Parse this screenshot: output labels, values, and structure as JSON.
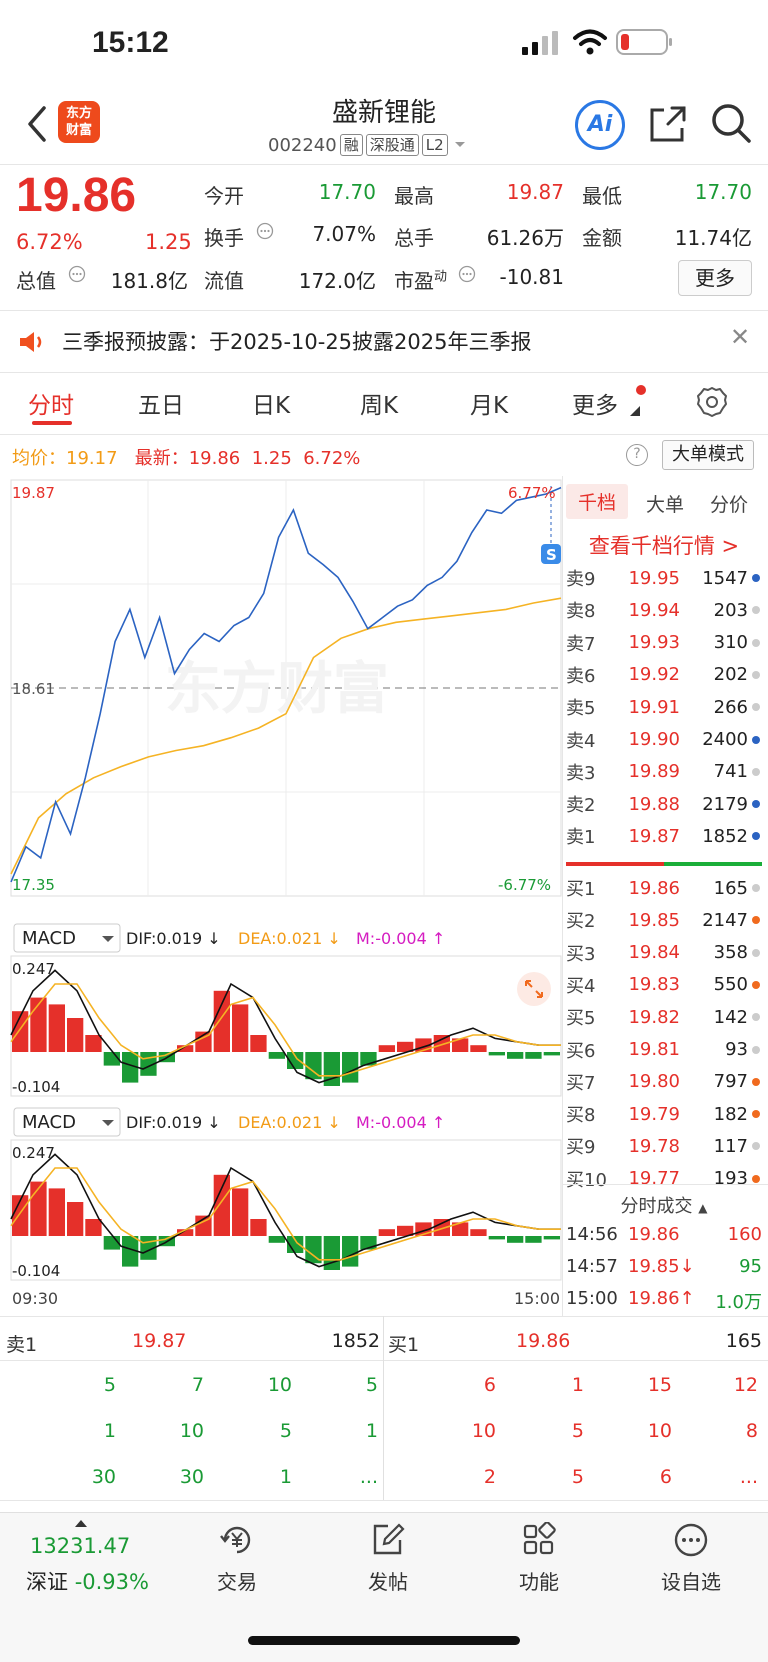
{
  "status_bar": {
    "time": "15:12"
  },
  "header": {
    "logo_line1": "东方",
    "logo_line2": "财富",
    "stock_name": "盛新锂能",
    "stock_code": "002240",
    "tags": [
      "融",
      "深股通",
      "L2"
    ]
  },
  "quote": {
    "price": "19.86",
    "change_pct": "6.72%",
    "change": "1.25",
    "open_label": "今开",
    "open": "17.70",
    "high_label": "最高",
    "high": "19.87",
    "low_label": "最低",
    "low": "17.70",
    "turnover_label": "换手",
    "turnover": "7.07%",
    "volume_label": "总手",
    "volume": "61.26万",
    "amount_label": "金额",
    "amount": "11.74亿",
    "mcap_label": "总值",
    "mcap": "181.8亿",
    "float_label": "流值",
    "float_val": "172.0亿",
    "pe_label": "市盈",
    "pe_sup": "动",
    "pe": "-10.81",
    "more_label": "更多"
  },
  "notice": {
    "text": "三季报预披露：于2025-10-25披露2025年三季报"
  },
  "tabs": [
    "分时",
    "五日",
    "日K",
    "周K",
    "月K",
    "更多"
  ],
  "info_line": {
    "avg_label": "均价：",
    "avg": "19.17",
    "latest_label": "最新：",
    "latest": "19.86",
    "latest_chg": "1.25",
    "latest_pct": "6.72%",
    "big_order_mode": "大单模式",
    "help": "?"
  },
  "chart": {
    "price_high": "19.87",
    "price_low": "17.35",
    "pre_close": "18.61",
    "pct_high": "6.77%",
    "pct_low": "-6.77%",
    "watermark": "东方财富",
    "s_marker": "S",
    "macd_label": "MACD",
    "dif": "DIF:0.019 ↓",
    "dea": "DEA:0.021 ↓",
    "m": "M:-0.004 ↑",
    "macd_top": "0.247",
    "macd_bottom": "-0.104",
    "time_start": "09:30",
    "time_end": "15:00",
    "colors": {
      "price_line": "#2b63c2",
      "avg_line": "#f5b324",
      "up": "#e5302a",
      "down": "#1a9a35"
    }
  },
  "orderbook": {
    "tabs": [
      "千档",
      "大单",
      "分价"
    ],
    "link": "查看千档行情 >",
    "asks": [
      {
        "label": "卖9",
        "price": "19.95",
        "vol": "1547",
        "dot": "#2b63c2"
      },
      {
        "label": "卖8",
        "price": "19.94",
        "vol": "203",
        "dot": "#cccccc"
      },
      {
        "label": "卖7",
        "price": "19.93",
        "vol": "310",
        "dot": "#cccccc"
      },
      {
        "label": "卖6",
        "price": "19.92",
        "vol": "202",
        "dot": "#cccccc"
      },
      {
        "label": "卖5",
        "price": "19.91",
        "vol": "266",
        "dot": "#cccccc"
      },
      {
        "label": "卖4",
        "price": "19.90",
        "vol": "2400",
        "dot": "#2b63c2"
      },
      {
        "label": "卖3",
        "price": "19.89",
        "vol": "741",
        "dot": "#cccccc"
      },
      {
        "label": "卖2",
        "price": "19.88",
        "vol": "2179",
        "dot": "#2b63c2"
      },
      {
        "label": "卖1",
        "price": "19.87",
        "vol": "1852",
        "dot": "#2b63c2"
      }
    ],
    "bids": [
      {
        "label": "买1",
        "price": "19.86",
        "vol": "165",
        "dot": "#cccccc"
      },
      {
        "label": "买2",
        "price": "19.85",
        "vol": "2147",
        "dot": "#f06a1e"
      },
      {
        "label": "买3",
        "price": "19.84",
        "vol": "358",
        "dot": "#cccccc"
      },
      {
        "label": "买4",
        "price": "19.83",
        "vol": "550",
        "dot": "#f06a1e"
      },
      {
        "label": "买5",
        "price": "19.82",
        "vol": "142",
        "dot": "#cccccc"
      },
      {
        "label": "买6",
        "price": "19.81",
        "vol": "93",
        "dot": "#cccccc"
      },
      {
        "label": "买7",
        "price": "19.80",
        "vol": "797",
        "dot": "#f06a1e"
      },
      {
        "label": "买8",
        "price": "19.79",
        "vol": "182",
        "dot": "#f06a1e"
      },
      {
        "label": "买9",
        "price": "19.78",
        "vol": "117",
        "dot": "#cccccc"
      },
      {
        "label": "买10",
        "price": "19.77",
        "vol": "193",
        "dot": "#f06a1e"
      }
    ],
    "trades_title": "分时成交",
    "trades": [
      {
        "time": "14:56",
        "price": "19.86",
        "arrow": "",
        "vol": "160",
        "vol_color": "red"
      },
      {
        "time": "14:57",
        "price": "19.85↓",
        "arrow": "",
        "vol": "95",
        "vol_color": "green"
      },
      {
        "time": "15:00",
        "price": "19.86↑",
        "arrow": "",
        "vol": "1.0万",
        "vol_color": "green"
      }
    ]
  },
  "bottom_queue": {
    "sell_label": "卖1",
    "sell_price": "19.87",
    "sell_vol": "1852",
    "buy_label": "买1",
    "buy_price": "19.86",
    "buy_vol": "165",
    "sell_grid": [
      [
        "5",
        "7",
        "10",
        "5"
      ],
      [
        "1",
        "10",
        "5",
        "1"
      ],
      [
        "30",
        "30",
        "1",
        "..."
      ]
    ],
    "buy_grid": [
      [
        "6",
        "1",
        "15",
        "12"
      ],
      [
        "10",
        "5",
        "10",
        "8"
      ],
      [
        "2",
        "5",
        "6",
        "..."
      ]
    ]
  },
  "bottom_nav": {
    "index_value": "13231.47",
    "index_name": "深证",
    "index_chg": "-0.93%",
    "items": [
      "交易",
      "发帖",
      "功能",
      "设自选"
    ]
  }
}
